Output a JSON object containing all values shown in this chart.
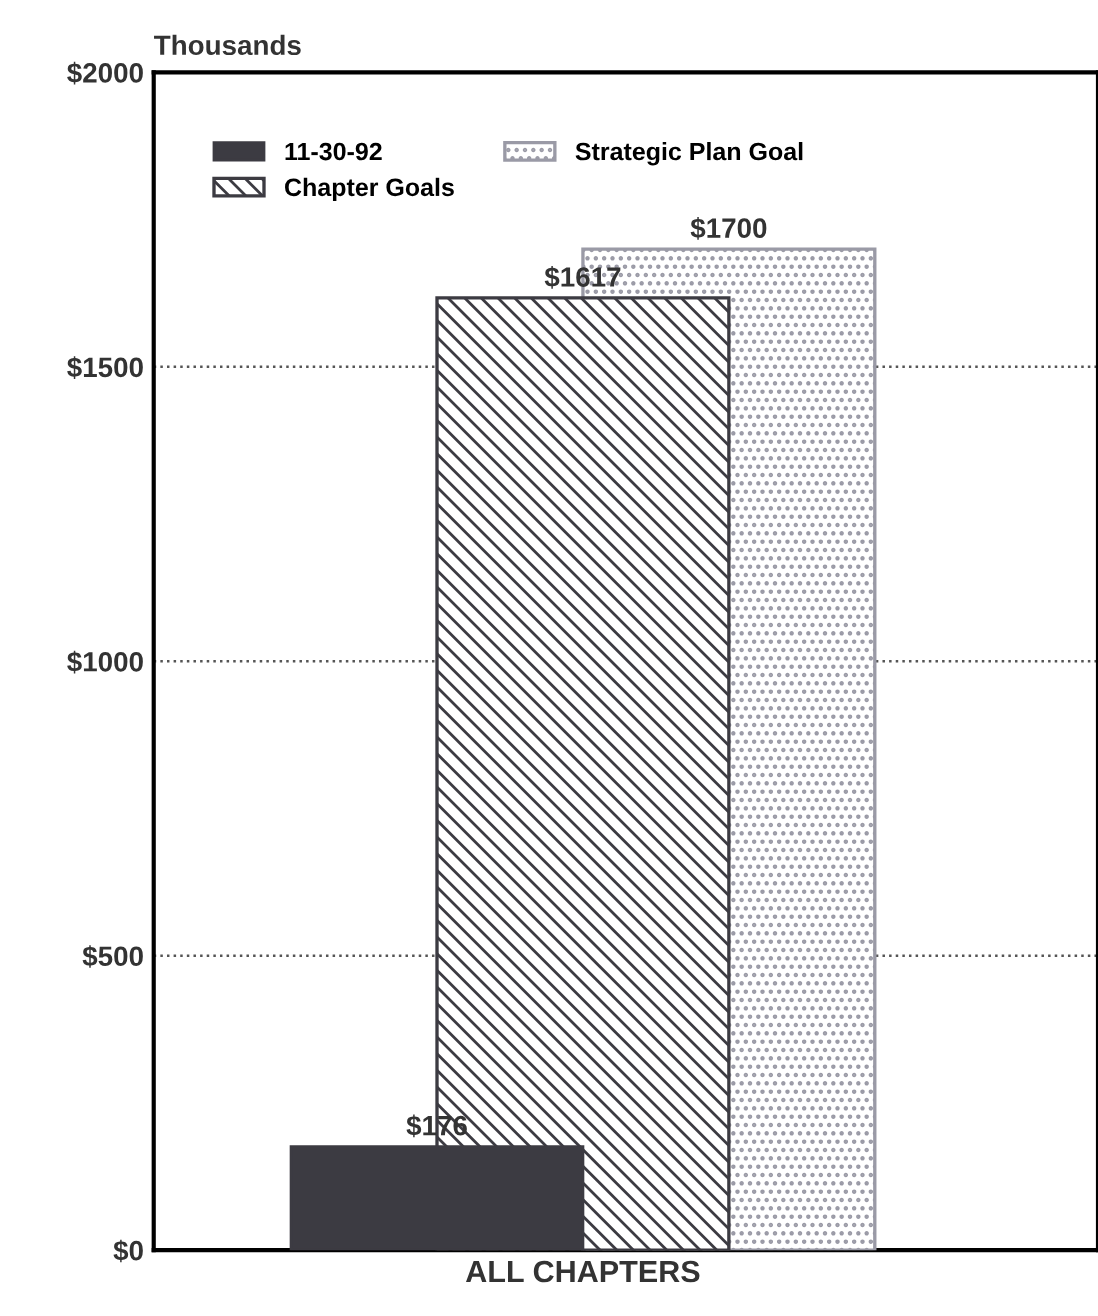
{
  "chart_data": {
    "type": "bar",
    "ylabel": "Thousands",
    "categories": [
      "ALL CHAPTERS"
    ],
    "series": [
      {
        "name": "11-30-92",
        "color": "#3c3b42",
        "values": [
          176
        ],
        "value_labels": [
          "$176"
        ]
      },
      {
        "name": "Chapter Goals",
        "color": "#3c3b42",
        "values": [
          1617
        ],
        "value_labels": [
          "$1617"
        ]
      },
      {
        "name": "Strategic Plan Goal",
        "color": "#9a9aa6",
        "values": [
          1700
        ],
        "value_labels": [
          "$1700"
        ]
      }
    ],
    "ylim": [
      0,
      2000
    ],
    "yticks": [
      {
        "value": 0,
        "label": "$0"
      },
      {
        "value": 500,
        "label": "$500"
      },
      {
        "value": 1000,
        "label": "$1000"
      },
      {
        "value": 1500,
        "label": "$1500"
      },
      {
        "value": 2000,
        "label": "$2000"
      }
    ],
    "grid": "y",
    "legend": "top left"
  }
}
